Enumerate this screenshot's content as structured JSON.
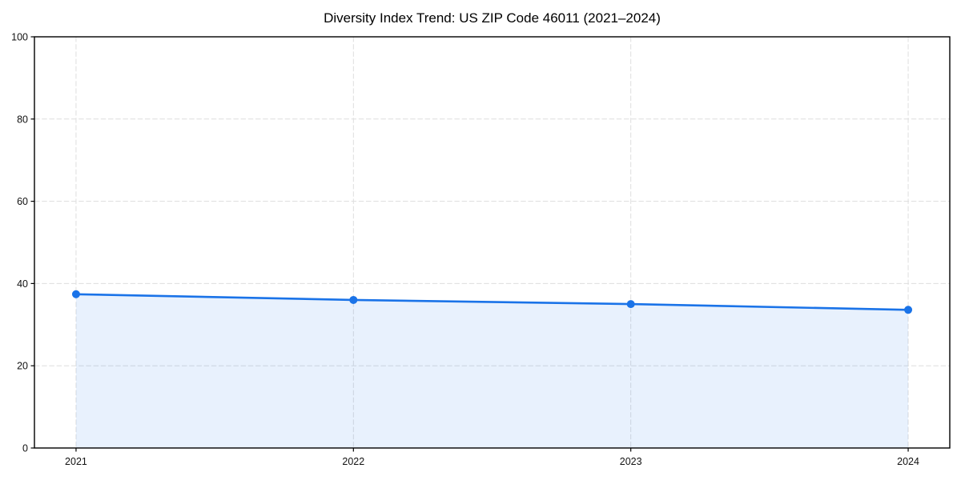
{
  "page": {
    "background_color": "#ffffff"
  },
  "chart_data": {
    "type": "line",
    "title": "Diversity Index Trend: US ZIP Code 46011 (2021–2024)",
    "categories": [
      "2021",
      "2022",
      "2023",
      "2024"
    ],
    "series": [
      {
        "name": "Diversity Index",
        "values": [
          37.4,
          36.0,
          35.0,
          33.6
        ]
      }
    ],
    "xlabel": "",
    "ylabel": "",
    "ylim": [
      0,
      100
    ],
    "yticks": [
      0,
      20,
      40,
      60,
      80,
      100
    ],
    "grid": {
      "visible": true,
      "style": "dashed",
      "axes": "both"
    },
    "legend_position": "none",
    "area_fill": true,
    "marker": "circle",
    "style": {
      "line_color": "#1a73e8",
      "marker_color": "#1a73e8",
      "area_fill_color": "#1a73e8",
      "area_fill_opacity": 0.1,
      "grid_color": "#dedede",
      "axis_color": "#000000",
      "tick_label_color": "#111111",
      "title_color": "#000000",
      "background": "#ffffff"
    }
  }
}
